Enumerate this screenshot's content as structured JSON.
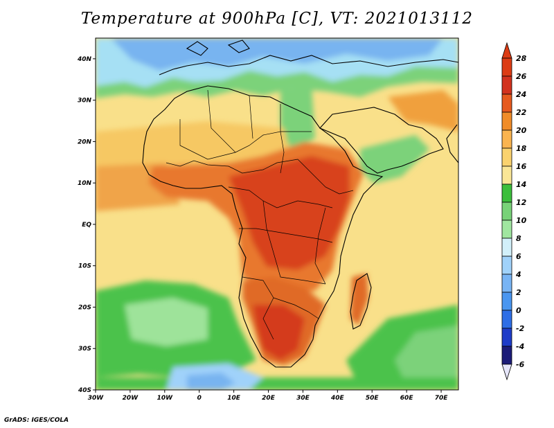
{
  "title": "Temperature at 900hPa [C], VT: 2021013112",
  "footer": "GrADS: IGES/COLA",
  "map": {
    "lat_labels": [
      {
        "text": "40N",
        "lat": 40
      },
      {
        "text": "30N",
        "lat": 30
      },
      {
        "text": "20N",
        "lat": 20
      },
      {
        "text": "10N",
        "lat": 10
      },
      {
        "text": "EQ",
        "lat": 0
      },
      {
        "text": "10S",
        "lat": -10
      },
      {
        "text": "20S",
        "lat": -20
      },
      {
        "text": "30S",
        "lat": -30
      },
      {
        "text": "40S",
        "lat": -40
      }
    ],
    "lon_labels": [
      {
        "text": "30W",
        "lon": -30
      },
      {
        "text": "20W",
        "lon": -20
      },
      {
        "text": "10W",
        "lon": -10
      },
      {
        "text": "0",
        "lon": 0
      },
      {
        "text": "10E",
        "lon": 10
      },
      {
        "text": "20E",
        "lon": 20
      },
      {
        "text": "30E",
        "lon": 30
      },
      {
        "text": "40E",
        "lon": 40
      },
      {
        "text": "50E",
        "lon": 50
      },
      {
        "text": "60E",
        "lon": 60
      },
      {
        "text": "70E",
        "lon": 70
      }
    ],
    "lon_range": [
      -30,
      75
    ],
    "lat_range": [
      -40,
      45
    ]
  },
  "colorbar": {
    "labels": [
      "28",
      "26",
      "24",
      "22",
      "20",
      "18",
      "16",
      "14",
      "12",
      "10",
      "8",
      "6",
      "4",
      "2",
      "0",
      "-2",
      "-4",
      "-6"
    ],
    "colors": [
      "#1c1c78",
      "#1e3cc8",
      "#2e6ee6",
      "#4a96f0",
      "#78b4f4",
      "#a0d2fa",
      "#d2f0fa",
      "#a0e6a0",
      "#78d278",
      "#3cbe3c",
      "#fae696",
      "#fad26e",
      "#fab450",
      "#f08c28",
      "#e65a1e",
      "#d2321e",
      "#dc3c14"
    ],
    "top_color": "#dc3c14",
    "bottom_color": "#e6e6fa"
  }
}
